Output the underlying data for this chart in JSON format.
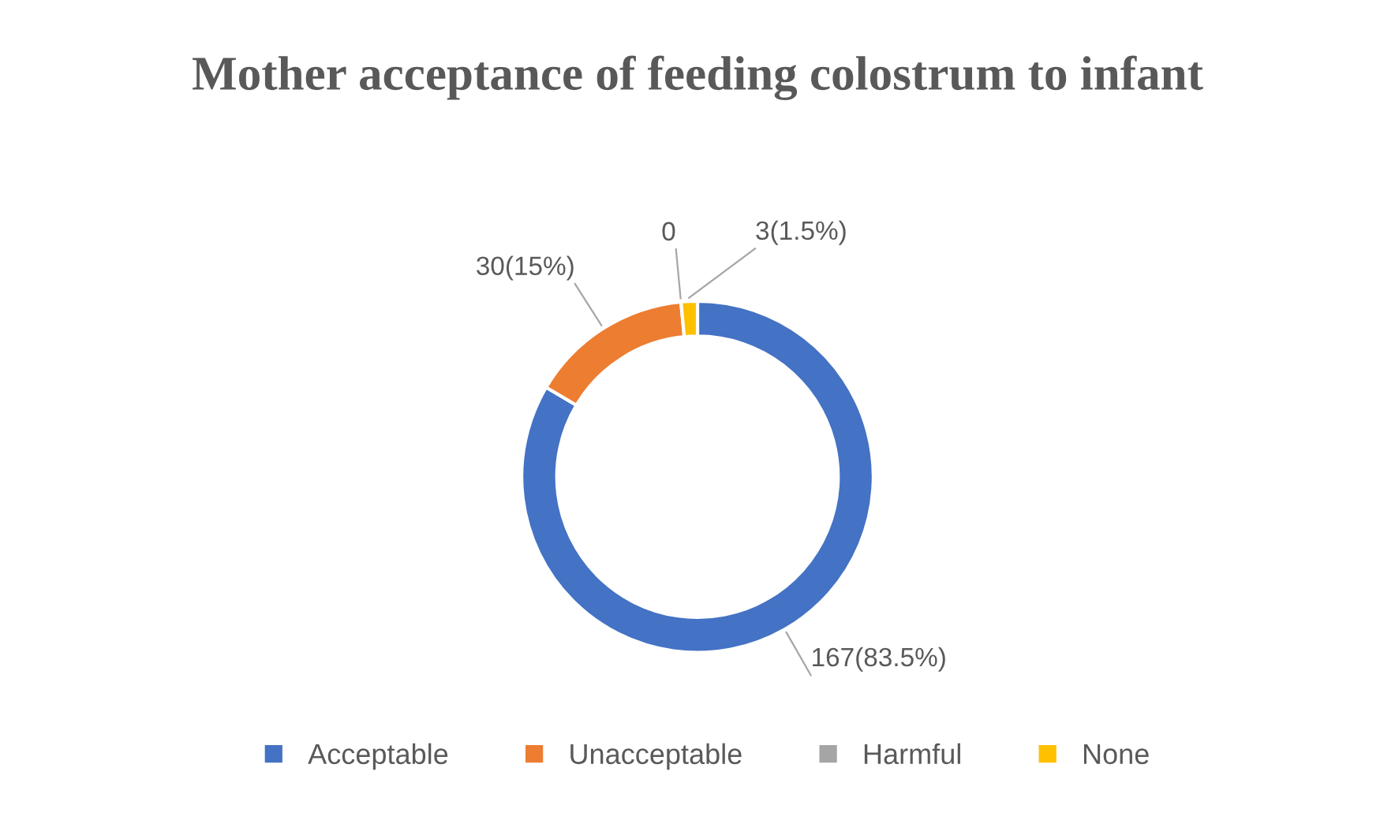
{
  "chart_data": {
    "type": "donut",
    "title": "Mother acceptance of feeding colostrum to infant",
    "categories": [
      "Acceptable",
      "Unacceptable",
      "Harmful",
      "None"
    ],
    "values": [
      167,
      30,
      0,
      3
    ],
    "colors": [
      "#4472c4",
      "#ed7d31",
      "#a5a5a5",
      "#ffc000"
    ],
    "value_labels": [
      "167(83.5%)",
      "30(15%)",
      "0",
      "3(1.5%)"
    ],
    "legend": "bottom"
  }
}
